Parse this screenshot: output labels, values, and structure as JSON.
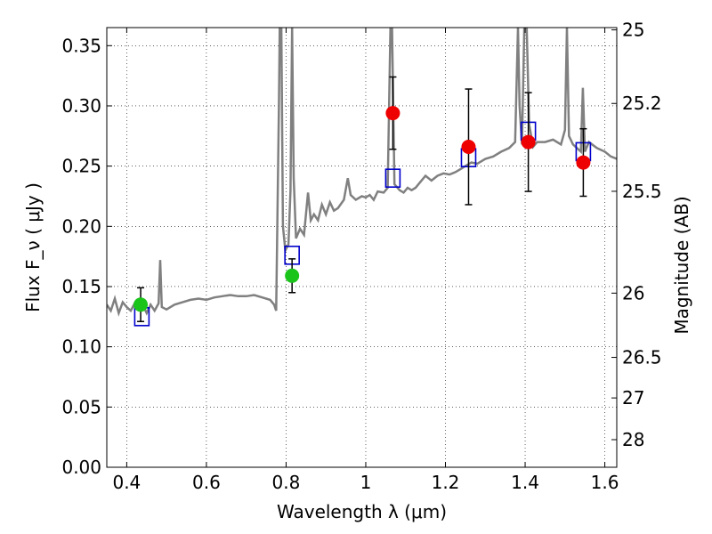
{
  "chart_data": {
    "type": "line",
    "xlabel": "Wavelength  λ (μm)",
    "ylabel": "Flux  F_ν  ( μJy )",
    "ylabel_right": "Magnitude (AB)",
    "xlim": [
      0.35,
      1.63
    ],
    "ylim": [
      0.0,
      0.365
    ],
    "grid": true,
    "x_ticks": [
      0.4,
      0.6,
      0.8,
      1.0,
      1.2,
      1.4,
      1.6
    ],
    "x_tick_labels": [
      "0.4",
      "0.6",
      "0.8",
      "1",
      "1.2",
      "1.4",
      "1.6"
    ],
    "y_ticks": [
      0.0,
      0.05,
      0.1,
      0.15,
      0.2,
      0.25,
      0.3,
      0.35
    ],
    "y_tick_labels": [
      "0.00",
      "0.05",
      "0.10",
      "0.15",
      "0.20",
      "0.25",
      "0.30",
      "0.35"
    ],
    "right_ticks": [
      {
        "mag": 25,
        "label": "25"
      },
      {
        "mag": 25.2,
        "label": "25.2"
      },
      {
        "mag": 25.5,
        "label": "25.5"
      },
      {
        "mag": 26,
        "label": "26"
      },
      {
        "mag": 26.5,
        "label": "26.5"
      },
      {
        "mag": 27,
        "label": "27"
      },
      {
        "mag": 28,
        "label": "28"
      }
    ],
    "series": [
      {
        "kind": "spectrum",
        "color": "#808080",
        "points": [
          [
            0.35,
            0.135
          ],
          [
            0.36,
            0.13
          ],
          [
            0.37,
            0.14
          ],
          [
            0.38,
            0.128
          ],
          [
            0.39,
            0.137
          ],
          [
            0.4,
            0.133
          ],
          [
            0.41,
            0.13
          ],
          [
            0.42,
            0.136
          ],
          [
            0.43,
            0.132
          ],
          [
            0.44,
            0.135
          ],
          [
            0.45,
            0.128
          ],
          [
            0.46,
            0.135
          ],
          [
            0.47,
            0.13
          ],
          [
            0.48,
            0.136
          ],
          [
            0.484,
            0.172
          ],
          [
            0.488,
            0.133
          ],
          [
            0.5,
            0.131
          ],
          [
            0.52,
            0.135
          ],
          [
            0.54,
            0.137
          ],
          [
            0.56,
            0.139
          ],
          [
            0.58,
            0.14
          ],
          [
            0.6,
            0.139
          ],
          [
            0.62,
            0.141
          ],
          [
            0.64,
            0.142
          ],
          [
            0.66,
            0.143
          ],
          [
            0.68,
            0.142
          ],
          [
            0.7,
            0.142
          ],
          [
            0.72,
            0.143
          ],
          [
            0.74,
            0.141
          ],
          [
            0.76,
            0.139
          ],
          [
            0.77,
            0.135
          ],
          [
            0.775,
            0.13
          ],
          [
            0.782,
            0.3
          ],
          [
            0.784,
            0.365
          ],
          [
            0.788,
            0.365
          ],
          [
            0.792,
            0.2
          ],
          [
            0.798,
            0.18
          ],
          [
            0.806,
            0.185
          ],
          [
            0.811,
            0.23
          ],
          [
            0.815,
            0.365
          ],
          [
            0.819,
            0.24
          ],
          [
            0.825,
            0.19
          ],
          [
            0.835,
            0.198
          ],
          [
            0.845,
            0.193
          ],
          [
            0.855,
            0.228
          ],
          [
            0.862,
            0.205
          ],
          [
            0.87,
            0.21
          ],
          [
            0.88,
            0.205
          ],
          [
            0.89,
            0.218
          ],
          [
            0.9,
            0.21
          ],
          [
            0.91,
            0.22
          ],
          [
            0.92,
            0.213
          ],
          [
            0.93,
            0.215
          ],
          [
            0.945,
            0.222
          ],
          [
            0.955,
            0.24
          ],
          [
            0.962,
            0.226
          ],
          [
            0.975,
            0.222
          ],
          [
            0.99,
            0.225
          ],
          [
            1.0,
            0.224
          ],
          [
            1.01,
            0.226
          ],
          [
            1.02,
            0.222
          ],
          [
            1.03,
            0.229
          ],
          [
            1.045,
            0.228
          ],
          [
            1.055,
            0.232
          ],
          [
            1.062,
            0.365
          ],
          [
            1.066,
            0.365
          ],
          [
            1.072,
            0.235
          ],
          [
            1.085,
            0.23
          ],
          [
            1.095,
            0.228
          ],
          [
            1.105,
            0.232
          ],
          [
            1.115,
            0.23
          ],
          [
            1.125,
            0.232
          ],
          [
            1.135,
            0.236
          ],
          [
            1.15,
            0.242
          ],
          [
            1.165,
            0.238
          ],
          [
            1.18,
            0.242
          ],
          [
            1.195,
            0.244
          ],
          [
            1.21,
            0.243
          ],
          [
            1.225,
            0.245
          ],
          [
            1.24,
            0.248
          ],
          [
            1.25,
            0.25
          ],
          [
            1.265,
            0.253
          ],
          [
            1.28,
            0.252
          ],
          [
            1.3,
            0.256
          ],
          [
            1.32,
            0.258
          ],
          [
            1.34,
            0.262
          ],
          [
            1.36,
            0.265
          ],
          [
            1.375,
            0.27
          ],
          [
            1.382,
            0.365
          ],
          [
            1.386,
            0.3
          ],
          [
            1.392,
            0.268
          ],
          [
            1.398,
            0.365
          ],
          [
            1.404,
            0.365
          ],
          [
            1.41,
            0.285
          ],
          [
            1.42,
            0.266
          ],
          [
            1.43,
            0.27
          ],
          [
            1.45,
            0.27
          ],
          [
            1.47,
            0.272
          ],
          [
            1.49,
            0.268
          ],
          [
            1.5,
            0.28
          ],
          [
            1.505,
            0.365
          ],
          [
            1.51,
            0.275
          ],
          [
            1.52,
            0.268
          ],
          [
            1.53,
            0.265
          ],
          [
            1.54,
            0.262
          ],
          [
            1.545,
            0.315
          ],
          [
            1.55,
            0.262
          ],
          [
            1.56,
            0.27
          ],
          [
            1.58,
            0.265
          ],
          [
            1.6,
            0.262
          ],
          [
            1.615,
            0.258
          ],
          [
            1.63,
            0.256
          ]
        ]
      },
      {
        "kind": "model-squares",
        "color": "#0000cc",
        "points": [
          [
            0.438,
            0.125
          ],
          [
            0.815,
            0.176
          ],
          [
            1.068,
            0.24
          ],
          [
            1.258,
            0.257
          ],
          [
            1.408,
            0.279
          ],
          [
            1.546,
            0.262
          ]
        ]
      },
      {
        "kind": "observed-green",
        "color": "#1ac41a",
        "points": [
          {
            "x": 0.435,
            "y": 0.135,
            "err": 0.014
          },
          {
            "x": 0.815,
            "y": 0.159,
            "err": 0.014
          }
        ]
      },
      {
        "kind": "observed-red",
        "color": "#ee0000",
        "points": [
          {
            "x": 1.068,
            "y": 0.294,
            "err": 0.03
          },
          {
            "x": 1.258,
            "y": 0.266,
            "err": 0.048
          },
          {
            "x": 1.408,
            "y": 0.27,
            "err": 0.041
          },
          {
            "x": 1.546,
            "y": 0.253,
            "err": 0.028
          }
        ]
      }
    ]
  }
}
